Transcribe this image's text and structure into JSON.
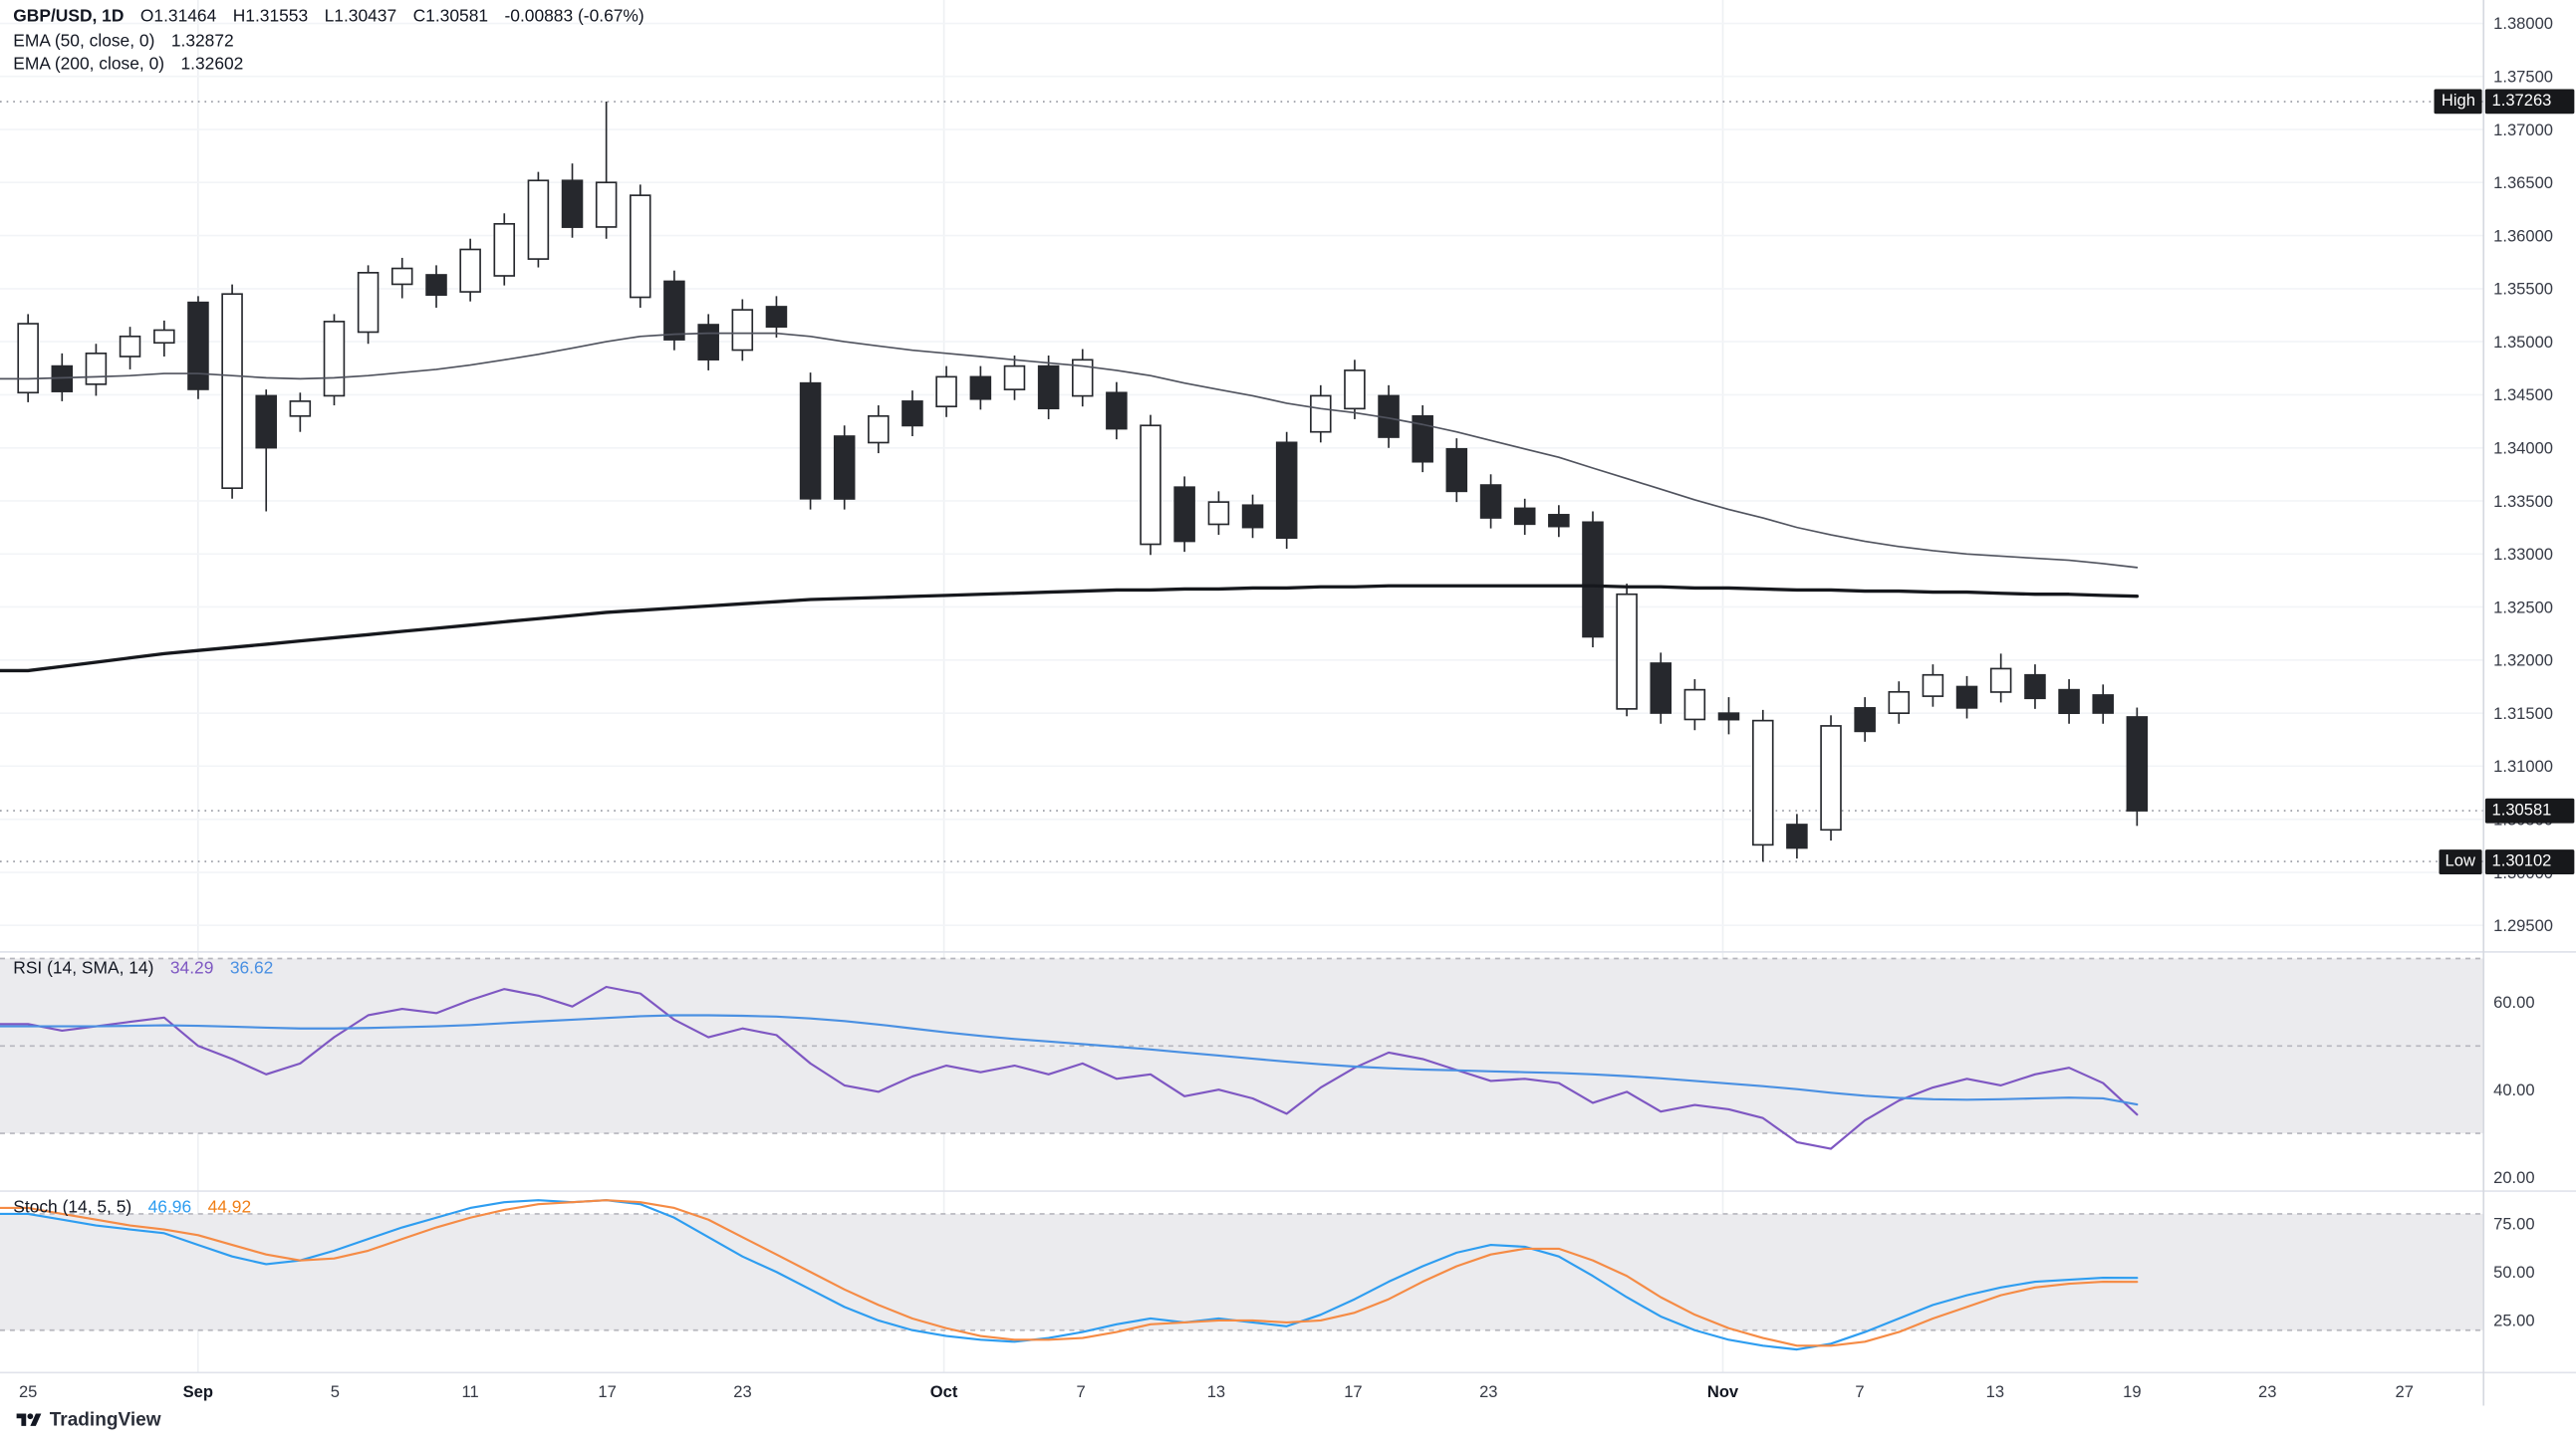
{
  "labels": {
    "high": "High",
    "low": "Low"
  },
  "footer": {
    "brand": "TradingView"
  },
  "chart_data": {
    "type": "candlestick",
    "header": {
      "symbol": "GBP/USD, 1D",
      "fields": [
        "O1.31464",
        "H1.31553",
        "L1.30437",
        "C1.30581"
      ],
      "change": "-0.00883 (-0.67%)"
    },
    "high_badge": "1.37263",
    "low_badge": "1.30102",
    "close_badge": "1.30581",
    "price_axis_labels": [
      "1.38000",
      "1.37500",
      "1.37000",
      "1.36500",
      "1.36000",
      "1.35500",
      "1.35000",
      "1.34500",
      "1.34000",
      "1.33500",
      "1.33000",
      "1.32500",
      "1.32000",
      "1.31500",
      "1.31000",
      "1.30500",
      "1.30000",
      "1.29500"
    ],
    "time_axis": [
      {
        "label": "25",
        "x": 17
      },
      {
        "label": "Sep",
        "x": 120,
        "month": true
      },
      {
        "label": "5",
        "x": 203
      },
      {
        "label": "11",
        "x": 285
      },
      {
        "label": "17",
        "x": 368
      },
      {
        "label": "23",
        "x": 450
      },
      {
        "label": "Oct",
        "x": 572,
        "month": true
      },
      {
        "label": "7",
        "x": 655
      },
      {
        "label": "13",
        "x": 737
      },
      {
        "label": "17",
        "x": 820
      },
      {
        "label": "23",
        "x": 902
      },
      {
        "label": "Nov",
        "x": 1044,
        "month": true
      },
      {
        "label": "7",
        "x": 1127
      },
      {
        "label": "13",
        "x": 1209
      },
      {
        "label": "19",
        "x": 1292
      },
      {
        "label": "23",
        "x": 1374
      },
      {
        "label": "27",
        "x": 1457
      }
    ],
    "ylim": [
      1.2925,
      1.3822
    ],
    "ohlc": [
      [
        1.3452,
        1.3526,
        1.3443,
        1.3517
      ],
      [
        1.3477,
        1.3489,
        1.3444,
        1.3453
      ],
      [
        1.346,
        1.3498,
        1.3449,
        1.3489
      ],
      [
        1.3486,
        1.3514,
        1.3474,
        1.3505
      ],
      [
        1.3499,
        1.352,
        1.3486,
        1.3511
      ],
      [
        1.3537,
        1.3543,
        1.3446,
        1.3455
      ],
      [
        1.3362,
        1.3554,
        1.3352,
        1.3545
      ],
      [
        1.3449,
        1.3455,
        1.334,
        1.34
      ],
      [
        1.343,
        1.3452,
        1.3415,
        1.3444
      ],
      [
        1.3449,
        1.3526,
        1.344,
        1.3519
      ],
      [
        1.3509,
        1.3572,
        1.3498,
        1.3565
      ],
      [
        1.3554,
        1.3579,
        1.3541,
        1.3569
      ],
      [
        1.3563,
        1.3572,
        1.3532,
        1.3544
      ],
      [
        1.3547,
        1.3597,
        1.3538,
        1.3587
      ],
      [
        1.3562,
        1.3621,
        1.3553,
        1.3611
      ],
      [
        1.3578,
        1.366,
        1.357,
        1.3652
      ],
      [
        1.3652,
        1.3668,
        1.3598,
        1.3608
      ],
      [
        1.3608,
        1.37263,
        1.3597,
        1.365
      ],
      [
        1.3542,
        1.3648,
        1.3532,
        1.3638
      ],
      [
        1.3557,
        1.3567,
        1.3492,
        1.3502
      ],
      [
        1.3516,
        1.3526,
        1.3473,
        1.3483
      ],
      [
        1.3492,
        1.354,
        1.3482,
        1.353
      ],
      [
        1.3533,
        1.3543,
        1.3504,
        1.3514
      ],
      [
        1.3461,
        1.3471,
        1.3342,
        1.3352
      ],
      [
        1.3411,
        1.3421,
        1.3342,
        1.3352
      ],
      [
        1.3405,
        1.344,
        1.3395,
        1.343
      ],
      [
        1.3444,
        1.3454,
        1.3411,
        1.3421
      ],
      [
        1.3439,
        1.3477,
        1.3429,
        1.3467
      ],
      [
        1.3467,
        1.3477,
        1.3436,
        1.3446
      ],
      [
        1.3455,
        1.3487,
        1.3445,
        1.3477
      ],
      [
        1.3477,
        1.3487,
        1.3427,
        1.3437
      ],
      [
        1.3449,
        1.3493,
        1.3439,
        1.3483
      ],
      [
        1.3452,
        1.3462,
        1.3408,
        1.3418
      ],
      [
        1.3309,
        1.3431,
        1.3299,
        1.3421
      ],
      [
        1.3363,
        1.3373,
        1.3302,
        1.3312
      ],
      [
        1.3328,
        1.3359,
        1.3318,
        1.3349
      ],
      [
        1.3346,
        1.3356,
        1.3315,
        1.3325
      ],
      [
        1.3405,
        1.3415,
        1.3305,
        1.3315
      ],
      [
        1.3415,
        1.3459,
        1.3405,
        1.3449
      ],
      [
        1.3437,
        1.3483,
        1.3427,
        1.3473
      ],
      [
        1.3449,
        1.3459,
        1.34,
        1.341
      ],
      [
        1.343,
        1.344,
        1.3377,
        1.3387
      ],
      [
        1.3399,
        1.3409,
        1.3349,
        1.3359
      ],
      [
        1.3365,
        1.3375,
        1.3324,
        1.3334
      ],
      [
        1.3343,
        1.3352,
        1.3318,
        1.3328
      ],
      [
        1.3337,
        1.3346,
        1.3316,
        1.3326
      ],
      [
        1.333,
        1.334,
        1.3212,
        1.3222
      ],
      [
        1.3154,
        1.3272,
        1.3147,
        1.3262
      ],
      [
        1.3197,
        1.3207,
        1.314,
        1.315
      ],
      [
        1.3144,
        1.3182,
        1.3134,
        1.3172
      ],
      [
        1.315,
        1.3165,
        1.313,
        1.3144
      ],
      [
        1.3026,
        1.3153,
        1.30102,
        1.3143
      ],
      [
        1.3045,
        1.3055,
        1.3013,
        1.3023
      ],
      [
        1.304,
        1.3148,
        1.303,
        1.3138
      ],
      [
        1.3155,
        1.3165,
        1.3123,
        1.3133
      ],
      [
        1.315,
        1.318,
        1.314,
        1.317
      ],
      [
        1.3166,
        1.3196,
        1.3156,
        1.3186
      ],
      [
        1.3175,
        1.3185,
        1.3145,
        1.3155
      ],
      [
        1.317,
        1.3206,
        1.316,
        1.3192
      ],
      [
        1.3186,
        1.3196,
        1.3154,
        1.3164
      ],
      [
        1.3172,
        1.3182,
        1.314,
        1.315
      ],
      [
        1.3167,
        1.3177,
        1.314,
        1.315
      ],
      [
        1.31464,
        1.31553,
        1.30437,
        1.30581
      ]
    ],
    "ema50": {
      "label": "EMA (50, close, 0)",
      "value": "1.32872",
      "values": [
        1.3465,
        1.3466,
        1.3467,
        1.3468,
        1.347,
        1.347,
        1.3468,
        1.3466,
        1.3465,
        1.3466,
        1.3468,
        1.3471,
        1.3474,
        1.3478,
        1.3483,
        1.3488,
        1.3494,
        1.35,
        1.3505,
        1.3507,
        1.3508,
        1.3508,
        1.3508,
        1.3505,
        1.35,
        1.3496,
        1.3492,
        1.3489,
        1.3486,
        1.3483,
        1.348,
        1.3477,
        1.3473,
        1.3468,
        1.3461,
        1.3455,
        1.3449,
        1.3442,
        1.3437,
        1.3433,
        1.3428,
        1.3422,
        1.3415,
        1.3407,
        1.3399,
        1.3391,
        1.3381,
        1.3371,
        1.3361,
        1.3351,
        1.3342,
        1.3334,
        1.3325,
        1.3318,
        1.3312,
        1.3307,
        1.3303,
        1.33,
        1.3298,
        1.3296,
        1.3294,
        1.3291,
        1.32872
      ]
    },
    "ema200": {
      "label": "EMA (200, close, 0)",
      "value": "1.32602",
      "values": [
        1.319,
        1.3194,
        1.3198,
        1.3202,
        1.3206,
        1.3209,
        1.3212,
        1.3215,
        1.3218,
        1.3221,
        1.3224,
        1.3227,
        1.323,
        1.3233,
        1.3236,
        1.3239,
        1.3242,
        1.3245,
        1.3247,
        1.3249,
        1.3251,
        1.3253,
        1.3255,
        1.3257,
        1.3258,
        1.3259,
        1.326,
        1.3261,
        1.3262,
        1.3263,
        1.3264,
        1.3265,
        1.3266,
        1.3266,
        1.3267,
        1.3267,
        1.3268,
        1.3268,
        1.3269,
        1.3269,
        1.327,
        1.327,
        1.327,
        1.327,
        1.327,
        1.327,
        1.327,
        1.3269,
        1.3269,
        1.3268,
        1.3268,
        1.3267,
        1.3266,
        1.3266,
        1.3265,
        1.3265,
        1.3264,
        1.3264,
        1.3263,
        1.3262,
        1.3262,
        1.3261,
        1.32602
      ]
    },
    "rsi": {
      "label": "RSI (14, SMA, 14)",
      "value1": "34.29",
      "value2": "36.62",
      "axis": [
        "60.00",
        "40.00",
        "20.00"
      ],
      "band": [
        30,
        70
      ],
      "mid": 50,
      "rsi": [
        55,
        53.5,
        54.5,
        55.5,
        56.5,
        50,
        47,
        43.5,
        46,
        52,
        57,
        58.5,
        57.5,
        60.5,
        63,
        61.5,
        59,
        63.5,
        62,
        56,
        52,
        54,
        52.5,
        46,
        41,
        39.5,
        43,
        45.5,
        44,
        45.5,
        43.5,
        46,
        42.5,
        43.5,
        38.5,
        40,
        38,
        34.5,
        40.5,
        45,
        48.5,
        47,
        44.5,
        42,
        42.5,
        41.5,
        37,
        39.5,
        35,
        36.5,
        35.5,
        33.5,
        28,
        26.5,
        33,
        37.5,
        40.5,
        42.5,
        41,
        43.5,
        45,
        41.5,
        34.29
      ],
      "sma": [
        54.5,
        54.5,
        54.5,
        54.6,
        54.7,
        54.6,
        54.4,
        54.2,
        54.0,
        54.0,
        54.1,
        54.3,
        54.5,
        54.8,
        55.2,
        55.6,
        56.0,
        56.4,
        56.8,
        57.0,
        57.0,
        56.9,
        56.7,
        56.3,
        55.7,
        54.9,
        54.0,
        53.1,
        52.3,
        51.6,
        51.0,
        50.4,
        49.8,
        49.2,
        48.5,
        47.8,
        47.1,
        46.4,
        45.8,
        45.3,
        44.9,
        44.6,
        44.4,
        44.2,
        44.0,
        43.8,
        43.5,
        43.1,
        42.6,
        42.0,
        41.4,
        40.8,
        40.1,
        39.3,
        38.6,
        38.1,
        37.8,
        37.7,
        37.8,
        38.0,
        38.2,
        38.0,
        36.62
      ]
    },
    "stoch": {
      "label": "Stoch (14, 5, 5)",
      "value1": "46.96",
      "value2": "44.92",
      "axis": [
        "75.00",
        "50.00",
        "25.00"
      ],
      "band": [
        20,
        80
      ],
      "k": [
        80,
        77,
        74,
        72,
        70,
        64,
        58,
        54,
        56,
        61,
        67,
        73,
        78,
        83,
        86,
        87,
        86,
        87,
        85,
        78,
        68,
        58,
        50,
        41,
        32,
        25,
        20,
        17,
        15,
        14,
        16,
        19,
        23,
        26,
        24,
        26,
        24,
        22,
        28,
        36,
        45,
        53,
        60,
        64,
        63,
        58,
        48,
        37,
        27,
        20,
        15,
        12,
        10,
        13,
        19,
        26,
        33,
        38,
        42,
        45,
        46,
        47,
        46.96
      ],
      "d": [
        83,
        80,
        77,
        74,
        72,
        69,
        64,
        59,
        56,
        57,
        61,
        67,
        73,
        78,
        82,
        85,
        86,
        87,
        86,
        83,
        77,
        68,
        59,
        50,
        41,
        33,
        26,
        21,
        17,
        15,
        15,
        16,
        19,
        23,
        24,
        25,
        25,
        24,
        25,
        29,
        36,
        45,
        53,
        59,
        62,
        62,
        56,
        48,
        37,
        28,
        21,
        16,
        12,
        12,
        14,
        19,
        26,
        32,
        38,
        42,
        44,
        45,
        44.92
      ]
    }
  }
}
